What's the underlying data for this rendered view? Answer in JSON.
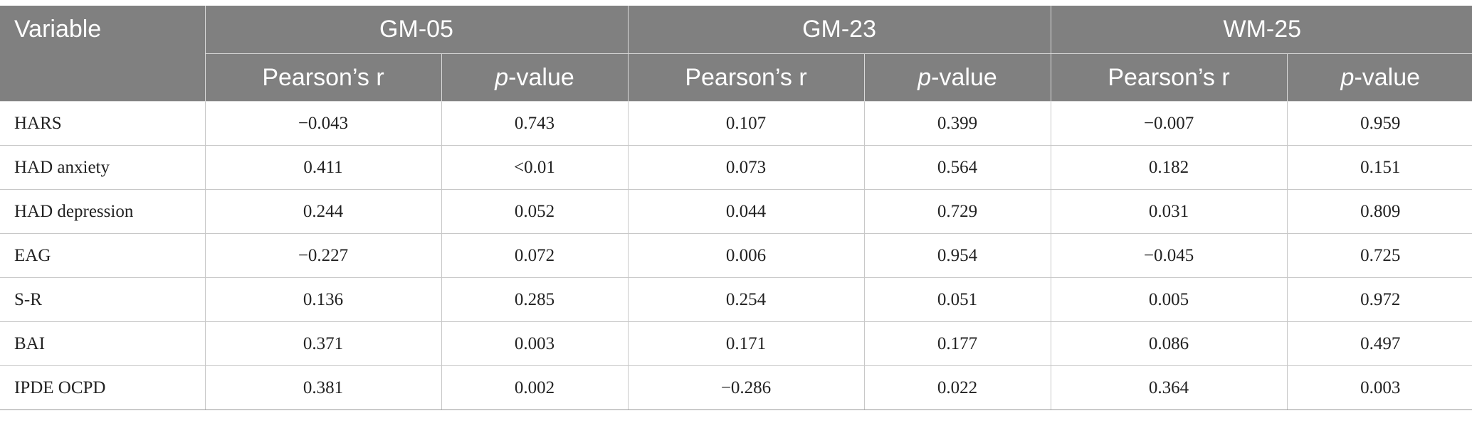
{
  "header": {
    "variable": "Variable",
    "groups": [
      "GM-05",
      "GM-23",
      "WM-25"
    ],
    "sub_r": "Pearson’s r",
    "sub_p_italic": "p",
    "sub_p_rest": "-value"
  },
  "rows": [
    {
      "name": "HARS",
      "vals": [
        "−0.043",
        "0.743",
        "0.107",
        "0.399",
        "−0.007",
        "0.959"
      ]
    },
    {
      "name": "HAD anxiety",
      "vals": [
        "0.411",
        "<0.01",
        "0.073",
        "0.564",
        "0.182",
        "0.151"
      ]
    },
    {
      "name": "HAD depression",
      "vals": [
        "0.244",
        "0.052",
        "0.044",
        "0.729",
        "0.031",
        "0.809"
      ]
    },
    {
      "name": "EAG",
      "vals": [
        "−0.227",
        "0.072",
        "0.006",
        "0.954",
        "−0.045",
        "0.725"
      ]
    },
    {
      "name": "S-R",
      "vals": [
        "0.136",
        "0.285",
        "0.254",
        "0.051",
        "0.005",
        "0.972"
      ]
    },
    {
      "name": "BAI",
      "vals": [
        "0.371",
        "0.003",
        "0.171",
        "0.177",
        "0.086",
        "0.497"
      ]
    },
    {
      "name": "IPDE OCPD",
      "vals": [
        "0.381",
        "0.002",
        "−0.286",
        "0.022",
        "0.364",
        "0.003"
      ]
    }
  ]
}
